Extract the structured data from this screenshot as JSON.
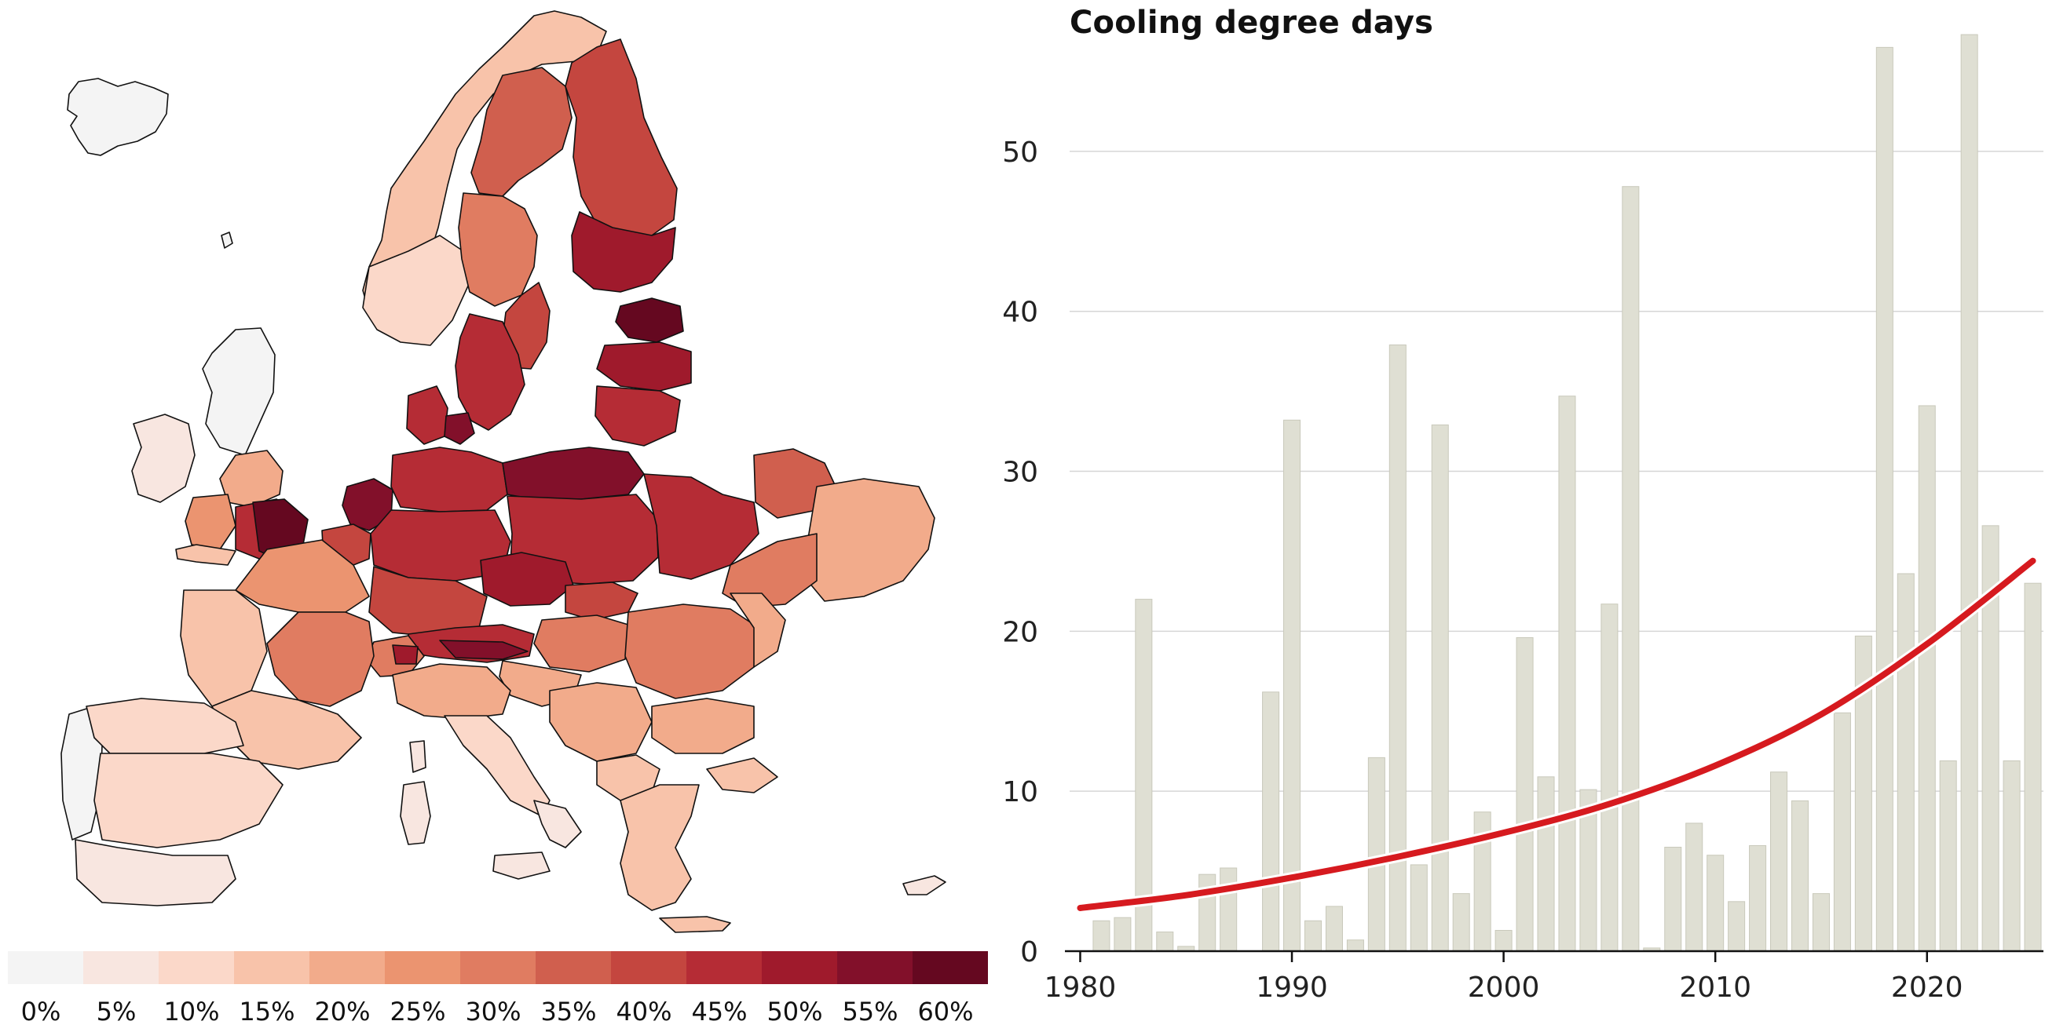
{
  "map": {
    "legend": {
      "labels": [
        "0%",
        "5%",
        "10%",
        "15%",
        "20%",
        "25%",
        "30%",
        "35%",
        "40%",
        "45%",
        "50%",
        "55%",
        "60%"
      ],
      "colors": [
        "#f4f4f4",
        "#f8e6e0",
        "#fbd8c9",
        "#f8c3aa",
        "#f2ab8b",
        "#eb9470",
        "#e07c61",
        "#d05f4e",
        "#c4463f",
        "#b52c35",
        "#9f1a2c",
        "#82102a",
        "#650820"
      ]
    }
  },
  "chart": {
    "title": "Cooling degree days"
  },
  "chart_data": {
    "type": "bar",
    "title": "Cooling degree days",
    "xlabel": "",
    "ylabel": "",
    "xlim": [
      1980,
      2025
    ],
    "ylim": [
      0,
      57
    ],
    "x_ticks": [
      1980,
      1990,
      2000,
      2010,
      2020
    ],
    "y_ticks": [
      0,
      10,
      20,
      30,
      40,
      50
    ],
    "grid": true,
    "x": [
      1981,
      1982,
      1983,
      1984,
      1985,
      1986,
      1987,
      1988,
      1989,
      1990,
      1991,
      1992,
      1993,
      1994,
      1995,
      1996,
      1997,
      1998,
      1999,
      2000,
      2001,
      2002,
      2003,
      2004,
      2005,
      2006,
      2007,
      2008,
      2009,
      2010,
      2011,
      2012,
      2013,
      2014,
      2015,
      2016,
      2017,
      2018,
      2019,
      2020,
      2021,
      2022,
      2023,
      2024,
      2025
    ],
    "values": [
      1.9,
      2.1,
      22.0,
      1.2,
      0.3,
      4.8,
      5.2,
      0.0,
      16.2,
      33.2,
      1.9,
      2.8,
      0.7,
      12.1,
      37.9,
      5.4,
      32.9,
      3.6,
      8.7,
      1.3,
      19.6,
      10.9,
      34.7,
      10.1,
      21.7,
      47.8,
      0.2,
      6.5,
      8.0,
      6.0,
      3.1,
      6.6,
      11.2,
      9.4,
      3.6,
      14.9,
      19.7,
      56.5,
      23.6,
      34.1,
      11.9,
      57.3,
      26.6,
      11.9,
      23.0
    ],
    "bar_color": "#dfdfd3",
    "trend": {
      "name": "trend",
      "color": "#d61a1f",
      "x": [
        1980,
        1985,
        1990,
        1995,
        2000,
        2005,
        2010,
        2015,
        2020,
        2025
      ],
      "y": [
        2.7,
        3.5,
        4.6,
        5.9,
        7.4,
        9.2,
        11.6,
        14.8,
        19.2,
        24.4
      ]
    }
  }
}
